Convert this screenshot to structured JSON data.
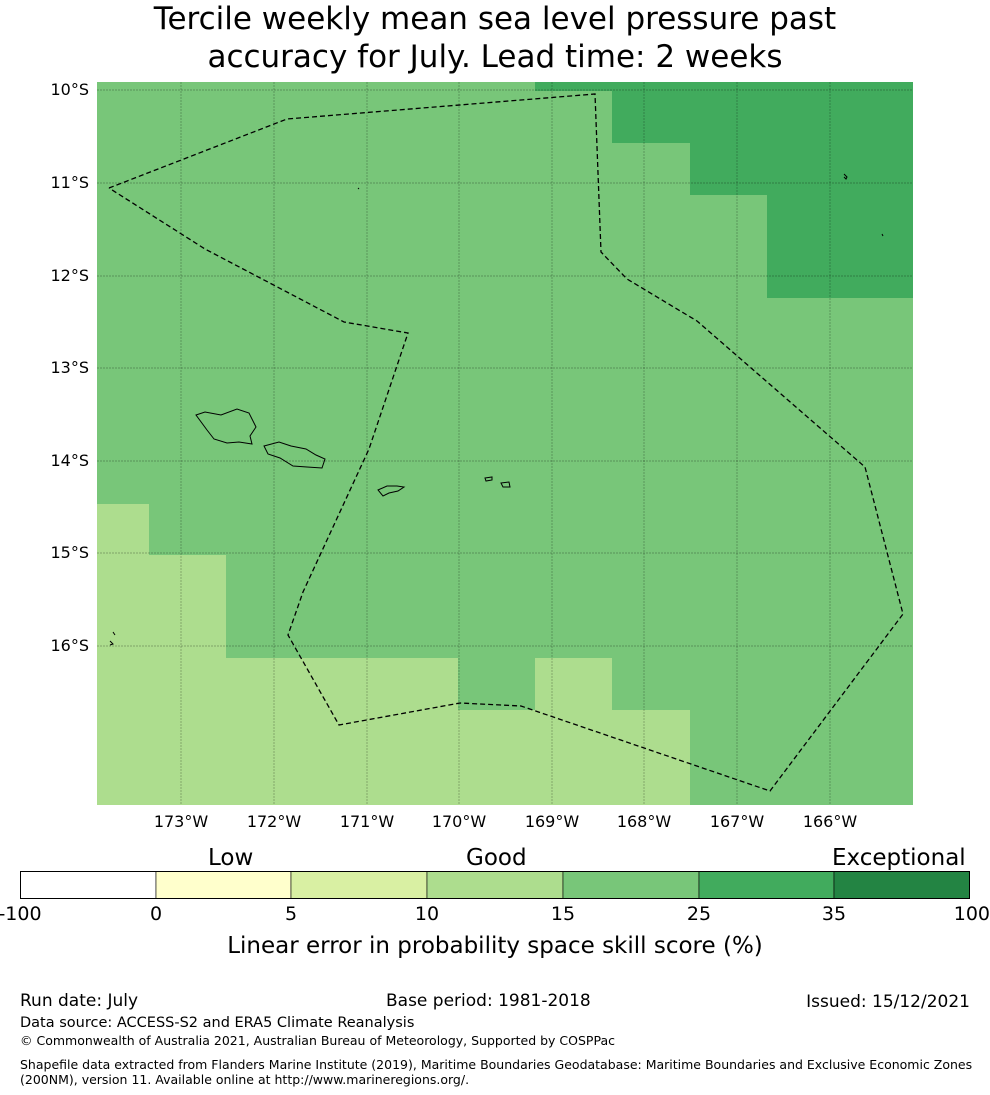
{
  "title": {
    "line1": "Tercile weekly mean sea level pressure past",
    "line2": "accuracy for July. Lead time: 2 weeks"
  },
  "map": {
    "lat_labels": [
      "10°S",
      "11°S",
      "12°S",
      "13°S",
      "14°S",
      "15°S",
      "16°S"
    ],
    "lon_labels": [
      "173°W",
      "172°W",
      "171°W",
      "170°W",
      "169°W",
      "168°W",
      "167°W",
      "166°W"
    ],
    "colors": {
      "band_15_25": "#78c679",
      "band_25_35": "#41ab5d",
      "band_10_15": "#addd8e"
    }
  },
  "legend": {
    "categories": [
      "Low",
      "Good",
      "Exceptional"
    ],
    "ticks": [
      "-100",
      "0",
      "5",
      "10",
      "15",
      "25",
      "35",
      "100"
    ],
    "colors": [
      "#ffffff",
      "#ffffcc",
      "#d9f0a3",
      "#addd8e",
      "#78c679",
      "#41ab5d",
      "#238443"
    ],
    "label": "Linear error in probability space skill score (%)"
  },
  "footer": {
    "run_date": "Run date: July",
    "base_period": "Base period: 1981-2018",
    "issued": "Issued: 15/12/2021",
    "data_source": "Data source: ACCESS-S2 and ERA5 Climate Reanalysis",
    "copyright": "© Commonwealth of Australia 2021, Australian Bureau of Meteorology, Supported by COSPPac",
    "shapefile_line1": "Shapefile data extracted from Flanders Marine Institute (2019), Maritime Boundaries Geodatabase: Maritime Boundaries and Exclusive Economic Zones",
    "shapefile_line2": "(200NM), version 11. Available online at http://www.marineregions.org/."
  }
}
